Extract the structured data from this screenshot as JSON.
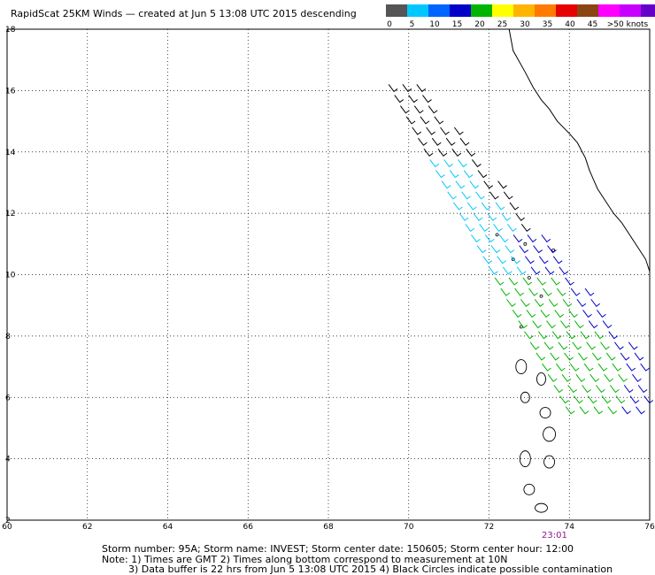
{
  "title": "RapidScat 25KM Winds — created at Jun  5 13:08 UTC 2015 descending",
  "legend": {
    "colors": [
      "#555555",
      "#00c8ff",
      "#0064ff",
      "#0000c8",
      "#00b400",
      "#ffff00",
      "#ffb400",
      "#ff7a00",
      "#e60000",
      "#8b4513",
      "#ff00ff",
      "#c800ff",
      "#6400c8"
    ],
    "labels": [
      "0",
      "5",
      "10",
      "15",
      "20",
      "25",
      "30",
      "35",
      "40",
      "45",
      ">50 knots"
    ]
  },
  "map": {
    "xlim": [
      60,
      76
    ],
    "ylim": [
      2,
      18
    ],
    "x_ticks": [
      "60",
      "62",
      "64",
      "66",
      "68",
      "70",
      "72",
      "74",
      "76"
    ],
    "y_ticks": [
      "2",
      "4",
      "6",
      "8",
      "10",
      "12",
      "14",
      "16",
      "18"
    ],
    "grid": true,
    "time_marker": "23:01"
  },
  "footer": {
    "line1": "Storm number: 95A;  Storm name: INVEST;  Storm center date: 150605;  Storm center hour: 12:00",
    "line2": "Note: 1) Times are GMT  2) Times along bottom correspond to measurement at 10N",
    "line3": "3) Data buffer is 22 hrs from Jun  5 13:08 UTC 2015  4) Black Circles indicate possible contamination"
  },
  "wind_colors": {
    "black": "#000000",
    "cyan": "#00c8ff",
    "blue": "#0000c8",
    "green": "#00b400"
  }
}
